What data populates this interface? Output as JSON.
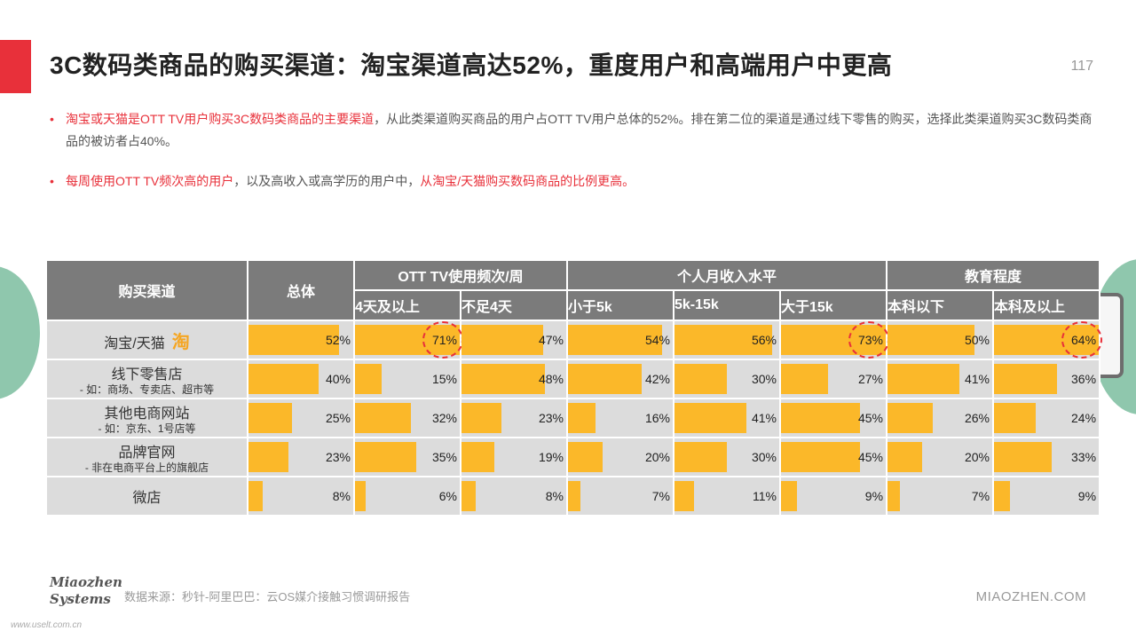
{
  "header": {
    "title": "3C数码类商品的购买渠道：淘宝渠道高达52%，重度用户和高端用户中更高",
    "page_number": "117"
  },
  "bullets": [
    {
      "highlight": "淘宝或天猫是OTT TV用户购买3C数码类商品的主要渠道",
      "text": "，从此类渠道购买商品的用户占OTT TV用户总体的52%。排在第二位的渠道是通过线下零售的购买，选择此类渠道购买3C数码类商品的被访者占40%。"
    },
    {
      "highlight": "每周使用OTT TV频次高的用户",
      "text": "，以及高收入或高学历的用户中，",
      "highlight2": "从淘宝/天猫购买数码商品的比例更高。"
    }
  ],
  "table": {
    "channel_header": "购买渠道",
    "overall_header": "总体",
    "groups": [
      {
        "label": "OTT TV使用频次/周",
        "subs": [
          "4天及以上",
          "不足4天"
        ]
      },
      {
        "label": "个人月收入水平",
        "subs": [
          "小于5k",
          "5k-15k",
          "大于15k"
        ]
      },
      {
        "label": "教育程度",
        "subs": [
          "本科以下",
          "本科及以上"
        ]
      }
    ],
    "taobao_glyph": "淘",
    "rows": [
      {
        "name": "淘宝/天猫",
        "sub": "",
        "values": [
          52,
          71,
          47,
          54,
          56,
          73,
          50,
          64
        ],
        "labels": [
          "52%",
          "71%",
          "47%",
          "54%",
          "56%",
          "73%",
          "50%",
          "64%"
        ]
      },
      {
        "name": "线下零售店",
        "sub": "- 如：商场、专卖店、超市等",
        "values": [
          40,
          15,
          48,
          42,
          30,
          27,
          41,
          36
        ],
        "labels": [
          "40%",
          "15%",
          "48%",
          "42%",
          "30%",
          "27%",
          "41%",
          "36%"
        ]
      },
      {
        "name": "其他电商网站",
        "sub": "- 如：京东、1号店等",
        "values": [
          25,
          32,
          23,
          16,
          41,
          45,
          26,
          24
        ],
        "labels": [
          "25%",
          "32%",
          "23%",
          "16%",
          "41%",
          "45%",
          "26%",
          "24%"
        ]
      },
      {
        "name": "品牌官网",
        "sub": "- 非在电商平台上的旗舰店",
        "values": [
          23,
          35,
          19,
          20,
          30,
          45,
          20,
          33
        ],
        "labels": [
          "23%",
          "35%",
          "19%",
          "20%",
          "30%",
          "45%",
          "20%",
          "33%"
        ]
      },
      {
        "name": "微店",
        "sub": "",
        "values": [
          8,
          6,
          8,
          7,
          11,
          9,
          7,
          9
        ],
        "labels": [
          "8%",
          "6%",
          "8%",
          "7%",
          "11%",
          "9%",
          "7%",
          "9%"
        ]
      }
    ],
    "circled_cells": [
      [
        0,
        1
      ],
      [
        0,
        5
      ],
      [
        0,
        7
      ]
    ]
  },
  "colors": {
    "accent": "#e8303a",
    "bar": "#fbb829",
    "header_bg": "#7b7b7b",
    "cell_bg": "#dcdcdc",
    "deco_green": "#8fc7ad"
  },
  "footer": {
    "logo_line1": "Miaozhen",
    "logo_line2": "Systems",
    "logo_sub": "www.uselt.com.cn",
    "source": "数据来源：秒针-阿里巴巴：云OS媒介接触习惯调研报告",
    "site": "MIAOZHEN.COM"
  }
}
